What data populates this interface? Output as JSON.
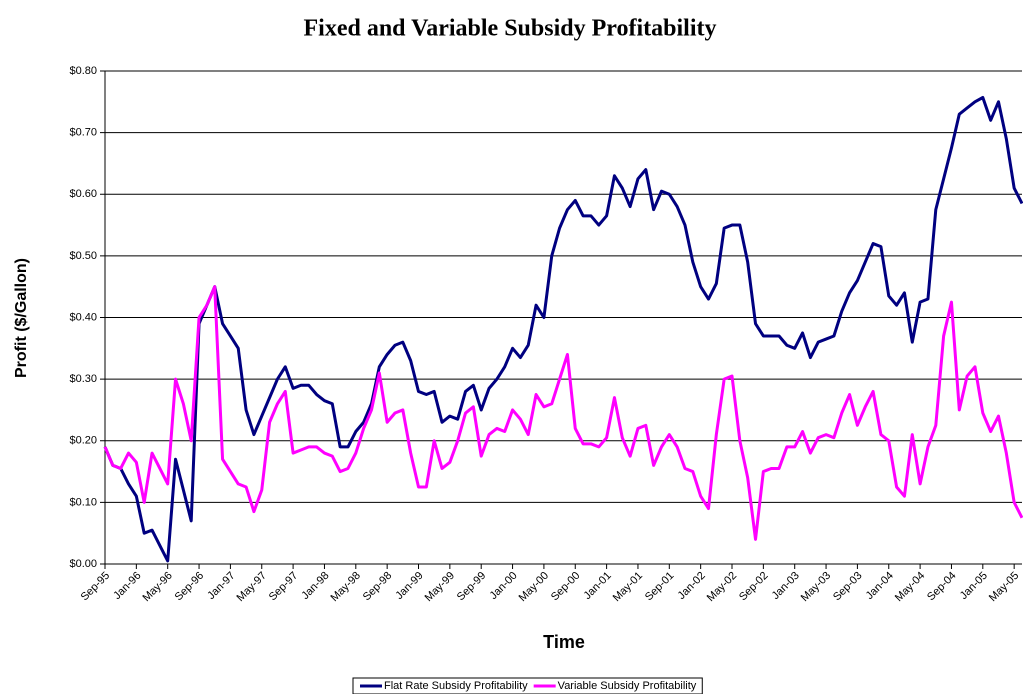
{
  "chart_data": {
    "type": "line",
    "title": "Fixed and Variable Subsidy Profitability",
    "x_label": "Time",
    "y_label": "Profit ($/Gallon)",
    "categories": [
      "Sep-95",
      null,
      null,
      null,
      "Jan-96",
      null,
      null,
      null,
      "May-96",
      null,
      null,
      null,
      "Sep-96",
      null,
      null,
      null,
      "Jan-97",
      null,
      null,
      null,
      "May-97",
      null,
      null,
      null,
      "Sep-97",
      null,
      null,
      null,
      "Jan-98",
      null,
      null,
      null,
      "May-98",
      null,
      null,
      null,
      "Sep-98",
      null,
      null,
      null,
      "Jan-99",
      null,
      null,
      null,
      "May-99",
      null,
      null,
      null,
      "Sep-99",
      null,
      null,
      null,
      "Jan-00",
      null,
      null,
      null,
      "May-00",
      null,
      null,
      null,
      "Sep-00",
      null,
      null,
      null,
      "Jan-01",
      null,
      null,
      null,
      "May-01",
      null,
      null,
      null,
      "Sep-01",
      null,
      null,
      null,
      "Jan-02",
      null,
      null,
      null,
      "May-02",
      null,
      null,
      null,
      "Sep-02",
      null,
      null,
      null,
      "Jan-03",
      null,
      null,
      null,
      "May-03",
      null,
      null,
      null,
      "Sep-03",
      null,
      null,
      null,
      "Jan-04",
      null,
      null,
      null,
      "May-04",
      null,
      null,
      null,
      "Sep-04",
      null,
      null,
      null,
      "Jan-05",
      null,
      null,
      null,
      "May-05",
      null
    ],
    "series": [
      {
        "name": "Flat Rate Subsidy Profitability",
        "color": "#000080",
        "values": [
          0.19,
          0.16,
          0.155,
          0.13,
          0.11,
          0.05,
          0.055,
          0.03,
          0.005,
          0.17,
          0.12,
          0.07,
          0.39,
          0.42,
          0.45,
          0.39,
          0.37,
          0.35,
          0.25,
          0.21,
          0.24,
          0.27,
          0.3,
          0.32,
          0.285,
          0.29,
          0.29,
          0.275,
          0.265,
          0.26,
          0.19,
          0.19,
          0.215,
          0.23,
          0.26,
          0.32,
          0.34,
          0.355,
          0.36,
          0.33,
          0.28,
          0.275,
          0.28,
          0.23,
          0.24,
          0.235,
          0.28,
          0.29,
          0.25,
          0.285,
          0.3,
          0.32,
          0.35,
          0.335,
          0.355,
          0.42,
          0.4,
          0.5,
          0.545,
          0.575,
          0.59,
          0.565,
          0.565,
          0.55,
          0.565,
          0.63,
          0.61,
          0.58,
          0.625,
          0.64,
          0.575,
          0.605,
          0.6,
          0.58,
          0.55,
          0.49,
          0.45,
          0.43,
          0.455,
          0.545,
          0.55,
          0.55,
          0.49,
          0.39,
          0.37,
          0.37,
          0.37,
          0.355,
          0.35,
          0.375,
          0.335,
          0.36,
          0.365,
          0.37,
          0.41,
          0.44,
          0.46,
          0.49,
          0.52,
          0.515,
          0.435,
          0.42,
          0.44,
          0.36,
          0.425,
          0.43,
          0.575,
          0.625,
          0.675,
          0.73,
          0.74,
          0.75,
          0.757,
          0.72,
          0.75,
          0.69,
          0.61,
          0.585
        ]
      },
      {
        "name": "Variable Subsidy Profitability",
        "color": "#ff00ff",
        "values": [
          0.19,
          0.16,
          0.155,
          0.18,
          0.165,
          0.1,
          0.18,
          0.155,
          0.13,
          0.3,
          0.26,
          0.2,
          0.4,
          0.42,
          0.45,
          0.17,
          0.15,
          0.13,
          0.125,
          0.085,
          0.12,
          0.23,
          0.26,
          0.28,
          0.18,
          0.185,
          0.19,
          0.19,
          0.18,
          0.175,
          0.15,
          0.155,
          0.18,
          0.22,
          0.25,
          0.31,
          0.23,
          0.245,
          0.25,
          0.18,
          0.125,
          0.125,
          0.2,
          0.155,
          0.165,
          0.2,
          0.245,
          0.255,
          0.175,
          0.21,
          0.22,
          0.215,
          0.25,
          0.235,
          0.21,
          0.275,
          0.255,
          0.26,
          0.3,
          0.34,
          0.22,
          0.195,
          0.195,
          0.19,
          0.205,
          0.27,
          0.205,
          0.175,
          0.22,
          0.225,
          0.16,
          0.19,
          0.21,
          0.19,
          0.155,
          0.15,
          0.11,
          0.09,
          0.21,
          0.3,
          0.305,
          0.2,
          0.14,
          0.04,
          0.15,
          0.155,
          0.155,
          0.19,
          0.19,
          0.215,
          0.18,
          0.205,
          0.21,
          0.205,
          0.245,
          0.275,
          0.225,
          0.255,
          0.28,
          0.21,
          0.2,
          0.125,
          0.11,
          0.21,
          0.13,
          0.19,
          0.225,
          0.37,
          0.425,
          0.25,
          0.305,
          0.32,
          0.245,
          0.215,
          0.24,
          0.18,
          0.1,
          0.075
        ]
      }
    ],
    "ylim": [
      0,
      0.8
    ],
    "yticks": [
      {
        "value": 0,
        "label": "$0.00"
      },
      {
        "value": 0.1,
        "label": "$0.10"
      },
      {
        "value": 0.2,
        "label": "$0.20"
      },
      {
        "value": 0.3,
        "label": "$0.30"
      },
      {
        "value": 0.4,
        "label": "$0.40"
      },
      {
        "value": 0.5,
        "label": "$0.50"
      },
      {
        "value": 0.6,
        "label": "$0.60"
      },
      {
        "value": 0.7,
        "label": "$0.70"
      },
      {
        "value": 0.8,
        "label": "$0.80"
      }
    ],
    "grid": true,
    "legend": "bottom"
  }
}
